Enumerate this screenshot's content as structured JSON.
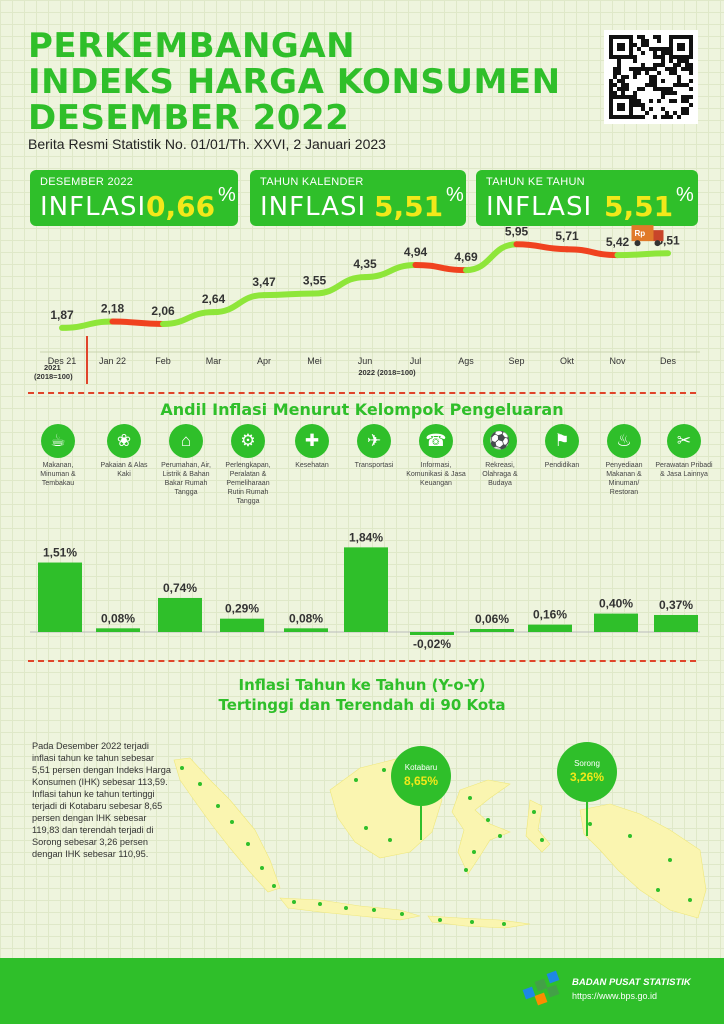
{
  "header": {
    "title_lines": [
      "PERKEMBANGAN",
      "INDEKS HARGA KONSUMEN",
      "DESEMBER 2022"
    ],
    "subtitle": "Berita Resmi Statistik No. 01/01/Th. XXVI, 2 Januari 2023"
  },
  "cards": [
    {
      "label": "DESEMBER 2022",
      "word": "INFLASI",
      "value": "0,66",
      "unit": "%"
    },
    {
      "label": "TAHUN KALENDER",
      "word": "INFLASI",
      "value": "5,51",
      "unit": "%"
    },
    {
      "label": "TAHUN KE TAHUN",
      "word": "INFLASI",
      "value": "5,51",
      "unit": "%"
    }
  ],
  "chart_data": [
    {
      "type": "line",
      "x": [
        "Des 21",
        "Jan 22",
        "Feb",
        "Mar",
        "Apr",
        "Mei",
        "Jun",
        "Jul",
        "Ags",
        "Sep",
        "Okt",
        "Nov",
        "Des"
      ],
      "values": [
        1.87,
        2.18,
        2.06,
        2.64,
        3.47,
        3.55,
        4.35,
        4.94,
        4.69,
        5.95,
        5.71,
        5.42,
        5.51
      ],
      "value_labels": [
        "1,87",
        "2,18",
        "2,06",
        "2,64",
        "3,47",
        "3,55",
        "4,35",
        "4,94",
        "4,69",
        "5,95",
        "5,71",
        "5,42",
        "5,51"
      ],
      "base_labels": {
        "left": "2021\n(2018=100)",
        "right": "2022 (2018=100)"
      },
      "colors": {
        "up": "#8ee63a",
        "down": "#f0421f"
      },
      "icon_label": "Rp"
    },
    {
      "type": "bar",
      "title": "Andil Inflasi Menurut Kelompok Pengeluaran",
      "categories": [
        "Makanan, Minuman & Tembakau",
        "Pakaian & Alas Kaki",
        "Perumahan, Air, Listrik & Bahan Bakar Rumah Tangga",
        "Perlengkapan, Peralatan & Pemeliharaan Rutin Rumah Tangga",
        "Kesehatan",
        "Transportasi",
        "Informasi, Komunikasi & Jasa Keuangan",
        "Rekreasi, Olahraga & Budaya",
        "Pendidikan",
        "Penyediaan Makanan & Minuman/ Restoran",
        "Perawatan Pribadi & Jasa Lainnya"
      ],
      "values": [
        1.51,
        0.08,
        0.74,
        0.29,
        0.08,
        1.84,
        -0.02,
        0.06,
        0.16,
        0.4,
        0.37
      ],
      "value_labels": [
        "1,51%",
        "0,08%",
        "0,74%",
        "0,29%",
        "0,08%",
        "1,84%",
        "-0,02%",
        "0,06%",
        "0,16%",
        "0,40%",
        "0,37%"
      ],
      "icons": [
        "food-icon",
        "clothing-icon",
        "house-icon",
        "appliance-icon",
        "health-icon",
        "plane-icon",
        "phone-icon",
        "sport-icon",
        "graduation-icon",
        "restaurant-icon",
        "personal-care-icon"
      ],
      "color": "#2fbf2a"
    }
  ],
  "map": {
    "title_line1": "Inflasi Tahun ke Tahun (Y-o-Y)",
    "title_line2": "Tertinggi dan Terendah di 90 Kota",
    "highest": {
      "city": "Kotabaru",
      "value": "8,65%"
    },
    "lowest": {
      "city": "Sorong",
      "value": "3,26%"
    },
    "paragraph": "Pada Desember 2022 terjadi inflasi tahun ke tahun sebesar 5,51 persen dengan Indeks Harga Konsumen (IHK) sebesar 113,59. Inflasi tahun ke tahun tertinggi terjadi di Kotabaru sebesar 8,65 persen dengan IHK sebesar 119,83 dan terendah terjadi di Sorong sebesar 3,26 persen dengan IHK sebesar 110,95."
  },
  "footer": {
    "org": "BADAN PUSAT STATISTIK",
    "url": "https://www.bps.go.id"
  }
}
